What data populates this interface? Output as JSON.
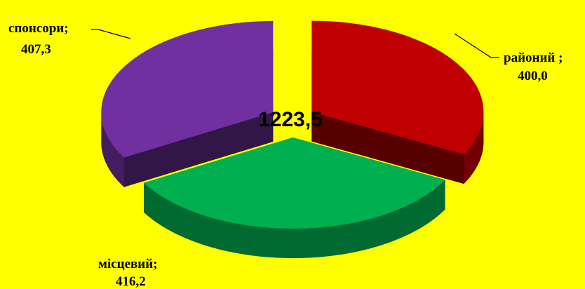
{
  "chart_data": {
    "type": "pie3d",
    "categories": [
      "районий ;",
      "місцевий;",
      "спонсори;"
    ],
    "values": [
      400.0,
      416.2,
      407.3
    ],
    "value_labels": [
      "400,0",
      "416,2",
      "407,3"
    ],
    "colors": [
      "#c00000",
      "#00b050",
      "#7030a0"
    ],
    "annotation": "1223,5"
  }
}
